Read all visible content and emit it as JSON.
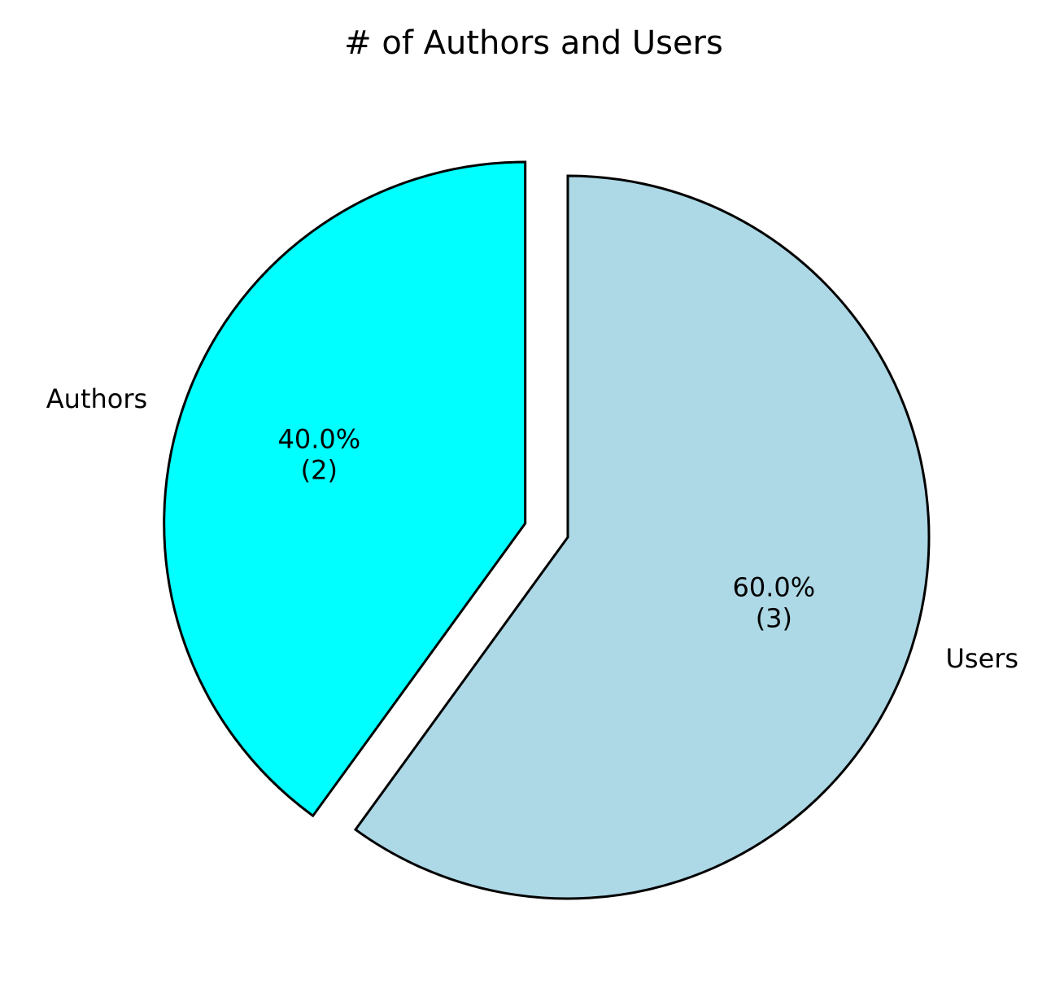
{
  "chart_data": {
    "type": "pie",
    "title": "# of Authors and Users",
    "slices": [
      {
        "label": "Authors",
        "value": 2,
        "percent_label": "40.0%",
        "count_label": "(2)",
        "color": "#00FFFF",
        "exploded": true
      },
      {
        "label": "Users",
        "value": 3,
        "percent_label": "60.0%",
        "count_label": "(3)",
        "color": "#ADD8E6",
        "exploded": false
      }
    ],
    "edge_color": "#000000",
    "start_angle_deg": 90,
    "direction": "counterclockwise",
    "legend": "none"
  }
}
